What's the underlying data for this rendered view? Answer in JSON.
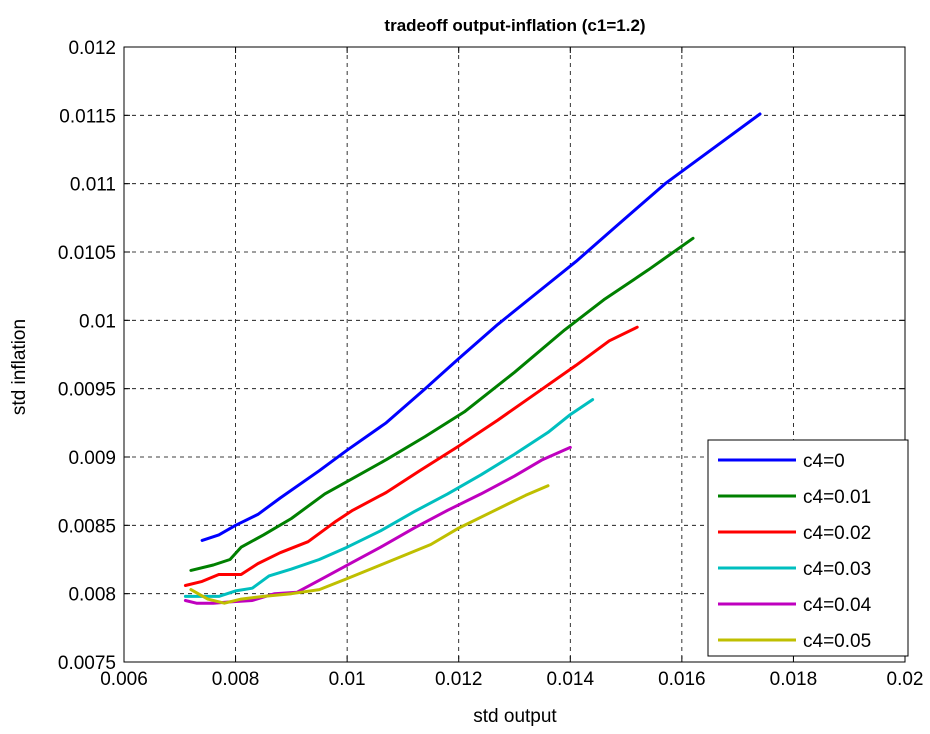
{
  "chart_data": {
    "type": "line",
    "title": "tradeoff output-inflation (c1=1.2)",
    "xlabel": "std output",
    "ylabel": "std inflation",
    "xlim": [
      0.006,
      0.02
    ],
    "ylim": [
      0.0075,
      0.012
    ],
    "xticks": [
      "0.006",
      "0.008",
      "0.01",
      "0.012",
      "0.014",
      "0.016",
      "0.018",
      "0.02"
    ],
    "yticks": [
      "0.0075",
      "0.008",
      "0.0085",
      "0.009",
      "0.0095",
      "0.01",
      "0.0105",
      "0.011",
      "0.0115",
      "0.012"
    ],
    "grid": true,
    "legend_position": "bottom-right",
    "series": [
      {
        "name": "c4=0",
        "color": "#0000ff",
        "x": [
          0.0074,
          0.0077,
          0.008,
          0.0084,
          0.0088,
          0.0095,
          0.01,
          0.0107,
          0.0114,
          0.012,
          0.0127,
          0.0134,
          0.0141,
          0.0148,
          0.0157,
          0.0174
        ],
        "y": [
          0.00839,
          0.00843,
          0.0085,
          0.00858,
          0.0087,
          0.0089,
          0.00905,
          0.00925,
          0.0095,
          0.00972,
          0.00997,
          0.0102,
          0.01043,
          0.01068,
          0.011,
          0.01151
        ]
      },
      {
        "name": "c4=0.01",
        "color": "#008000",
        "x": [
          0.0072,
          0.0076,
          0.0079,
          0.0081,
          0.0085,
          0.009,
          0.0096,
          0.01,
          0.0107,
          0.0114,
          0.0121,
          0.013,
          0.0139,
          0.0146,
          0.0154,
          0.0162
        ],
        "y": [
          0.00817,
          0.00821,
          0.00825,
          0.00834,
          0.00843,
          0.00855,
          0.00873,
          0.00882,
          0.00898,
          0.00915,
          0.00933,
          0.00962,
          0.00993,
          0.01015,
          0.01037,
          0.0106
        ]
      },
      {
        "name": "c4=0.02",
        "color": "#ff0000",
        "x": [
          0.0071,
          0.0074,
          0.0077,
          0.0081,
          0.0084,
          0.0088,
          0.0093,
          0.0098,
          0.0101,
          0.0107,
          0.0113,
          0.012,
          0.0127,
          0.0134,
          0.0141,
          0.0147,
          0.0152
        ],
        "y": [
          0.00806,
          0.00809,
          0.00814,
          0.00814,
          0.00822,
          0.0083,
          0.00838,
          0.00853,
          0.00861,
          0.00874,
          0.0089,
          0.00908,
          0.00927,
          0.00947,
          0.00967,
          0.00985,
          0.00995
        ]
      },
      {
        "name": "c4=0.03",
        "color": "#00bfbf",
        "x": [
          0.0071,
          0.0074,
          0.0077,
          0.008,
          0.0083,
          0.0086,
          0.009,
          0.0095,
          0.01,
          0.0106,
          0.0112,
          0.0118,
          0.0124,
          0.013,
          0.0136,
          0.014,
          0.0144
        ],
        "y": [
          0.00798,
          0.00798,
          0.00798,
          0.00802,
          0.00804,
          0.00813,
          0.00818,
          0.00825,
          0.00834,
          0.00846,
          0.0086,
          0.00873,
          0.00887,
          0.00902,
          0.00918,
          0.00931,
          0.00942
        ]
      },
      {
        "name": "c4=0.04",
        "color": "#bf00bf",
        "x": [
          0.0071,
          0.0073,
          0.0076,
          0.0079,
          0.0083,
          0.0087,
          0.0091,
          0.0096,
          0.0101,
          0.0106,
          0.0112,
          0.0118,
          0.0124,
          0.013,
          0.0135,
          0.014
        ],
        "y": [
          0.00795,
          0.00793,
          0.00793,
          0.00794,
          0.00795,
          0.008,
          0.00801,
          0.00812,
          0.00823,
          0.00834,
          0.00848,
          0.00861,
          0.00873,
          0.00886,
          0.00898,
          0.00907
        ]
      },
      {
        "name": "c4=0.05",
        "color": "#bfbf00",
        "x": [
          0.0072,
          0.0075,
          0.0078,
          0.0081,
          0.0085,
          0.009,
          0.0095,
          0.01,
          0.0106,
          0.0115,
          0.012,
          0.0126,
          0.0132,
          0.0136
        ],
        "y": [
          0.00803,
          0.00796,
          0.00793,
          0.00796,
          0.00798,
          0.008,
          0.00803,
          0.00811,
          0.00821,
          0.00836,
          0.00848,
          0.0086,
          0.00872,
          0.00879
        ]
      }
    ]
  }
}
